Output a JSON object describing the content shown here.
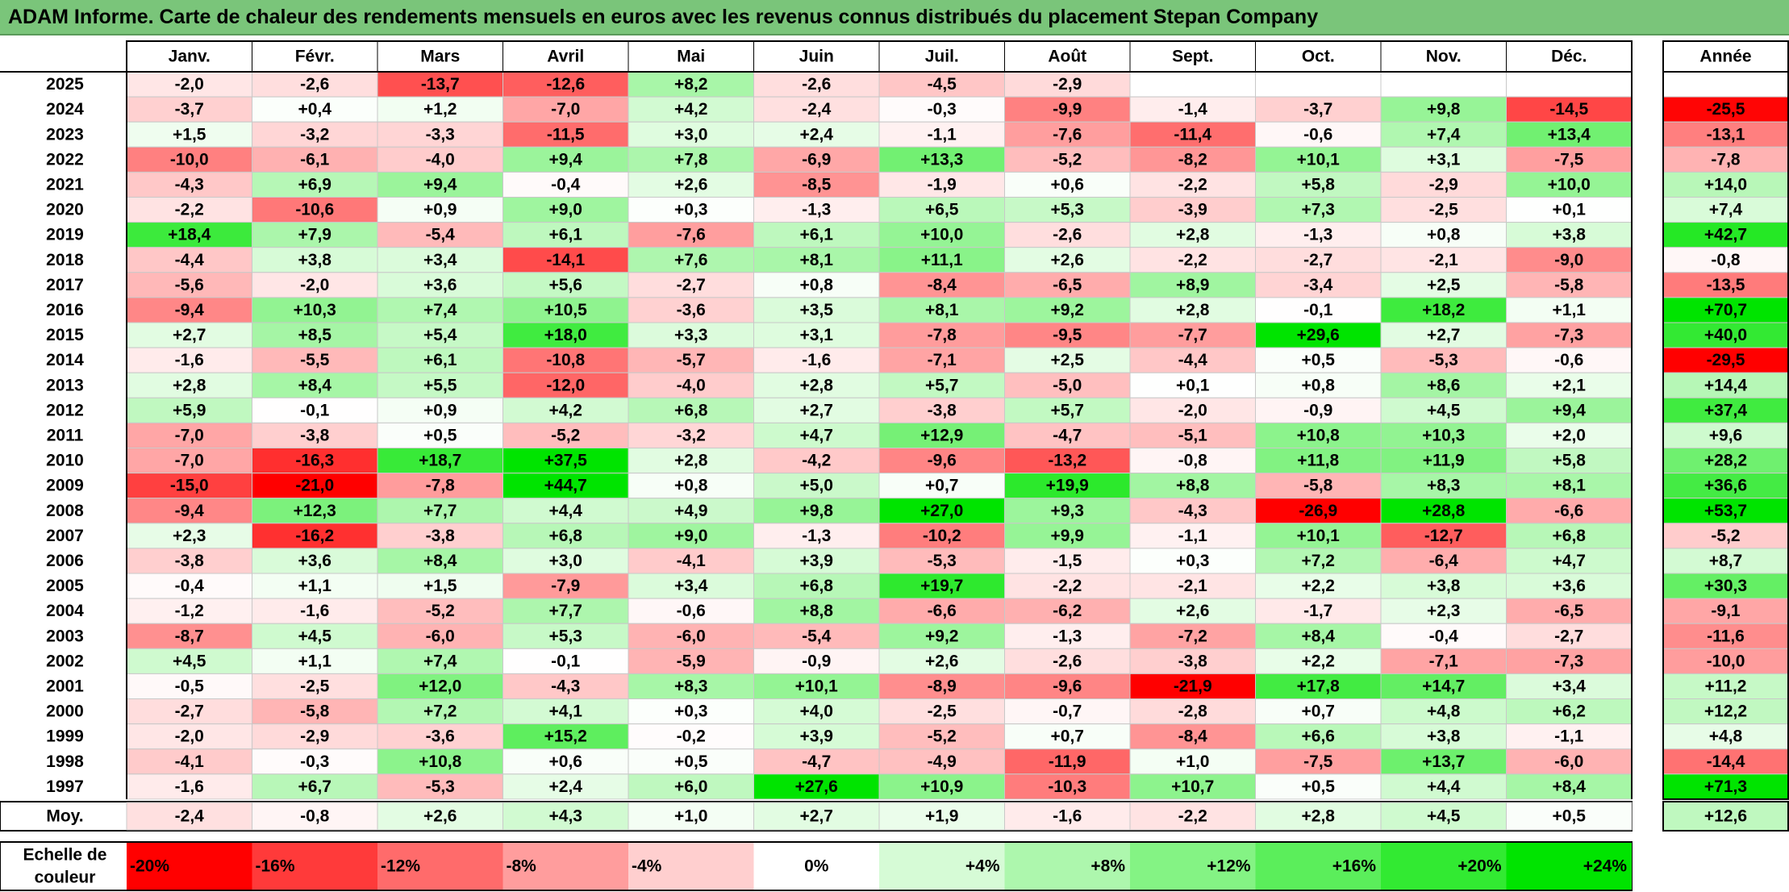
{
  "title": "ADAM Informe. Carte de chaleur des rendements mensuels en euros avec les revenus connus distribués du placement Stepan Company",
  "chart_data": {
    "type": "heatmap",
    "months": [
      "Janv.",
      "Févr.",
      "Mars",
      "Avril",
      "Mai",
      "Juin",
      "Juil.",
      "Août",
      "Sept.",
      "Oct.",
      "Nov.",
      "Déc."
    ],
    "year_col_label": "Année",
    "avg_row_label": "Moy.",
    "rows": [
      {
        "year": "2025",
        "values": [
          -2.0,
          -2.6,
          -13.7,
          -12.6,
          8.2,
          -2.6,
          -4.5,
          -2.9,
          null,
          null,
          null,
          null
        ],
        "annual": null
      },
      {
        "year": "2024",
        "values": [
          -3.7,
          0.4,
          1.2,
          -7.0,
          4.2,
          -2.4,
          -0.3,
          -9.9,
          -1.4,
          -3.7,
          9.8,
          -14.5
        ],
        "annual": -25.5
      },
      {
        "year": "2023",
        "values": [
          1.5,
          -3.2,
          -3.3,
          -11.5,
          3.0,
          2.4,
          -1.1,
          -7.6,
          -11.4,
          -0.6,
          7.4,
          13.4
        ],
        "annual": -13.1
      },
      {
        "year": "2022",
        "values": [
          -10.0,
          -6.1,
          -4.0,
          9.4,
          7.8,
          -6.9,
          13.3,
          -5.2,
          -8.2,
          10.1,
          3.1,
          -7.5
        ],
        "annual": -7.8
      },
      {
        "year": "2021",
        "values": [
          -4.3,
          6.9,
          9.4,
          -0.4,
          2.6,
          -8.5,
          -1.9,
          0.6,
          -2.2,
          5.8,
          -2.9,
          10.0
        ],
        "annual": 14.0
      },
      {
        "year": "2020",
        "values": [
          -2.2,
          -10.6,
          0.9,
          9.0,
          0.3,
          -1.3,
          6.5,
          5.3,
          -3.9,
          7.3,
          -2.5,
          0.1
        ],
        "annual": 7.4
      },
      {
        "year": "2019",
        "values": [
          18.4,
          7.9,
          -5.4,
          6.1,
          -7.6,
          6.1,
          10.0,
          -2.6,
          2.8,
          -1.3,
          0.8,
          3.8
        ],
        "annual": 42.7
      },
      {
        "year": "2018",
        "values": [
          -4.4,
          3.8,
          3.4,
          -14.1,
          7.6,
          8.1,
          11.1,
          2.6,
          -2.2,
          -2.7,
          -2.1,
          -9.0
        ],
        "annual": -0.8
      },
      {
        "year": "2017",
        "values": [
          -5.6,
          -2.0,
          3.6,
          5.6,
          -2.7,
          0.8,
          -8.4,
          -6.5,
          8.9,
          -3.4,
          2.5,
          -5.8
        ],
        "annual": -13.5
      },
      {
        "year": "2016",
        "values": [
          -9.4,
          10.3,
          7.4,
          10.5,
          -3.6,
          3.5,
          8.1,
          9.2,
          2.8,
          -0.1,
          18.2,
          1.1
        ],
        "annual": 70.7
      },
      {
        "year": "2015",
        "values": [
          2.7,
          8.5,
          5.4,
          18.0,
          3.3,
          3.1,
          -7.8,
          -9.5,
          -7.7,
          29.6,
          2.7,
          -7.3
        ],
        "annual": 40.0
      },
      {
        "year": "2014",
        "values": [
          -1.6,
          -5.5,
          6.1,
          -10.8,
          -5.7,
          -1.6,
          -7.1,
          2.5,
          -4.4,
          0.5,
          -5.3,
          -0.6
        ],
        "annual": -29.5
      },
      {
        "year": "2013",
        "values": [
          2.8,
          8.4,
          5.5,
          -12.0,
          -4.0,
          2.8,
          5.7,
          -5.0,
          0.1,
          0.8,
          8.6,
          2.1
        ],
        "annual": 14.4
      },
      {
        "year": "2012",
        "values": [
          5.9,
          -0.1,
          0.9,
          4.2,
          6.8,
          2.7,
          -3.8,
          5.7,
          -2.0,
          -0.9,
          4.5,
          9.4
        ],
        "annual": 37.4
      },
      {
        "year": "2011",
        "values": [
          -7.0,
          -3.8,
          0.5,
          -5.2,
          -3.2,
          4.7,
          12.9,
          -4.7,
          -5.1,
          10.8,
          10.3,
          2.0
        ],
        "annual": 9.6
      },
      {
        "year": "2010",
        "values": [
          -7.0,
          -16.3,
          18.7,
          37.5,
          2.8,
          -4.2,
          -9.6,
          -13.2,
          -0.8,
          11.8,
          11.9,
          5.8
        ],
        "annual": 28.2
      },
      {
        "year": "2009",
        "values": [
          -15.0,
          -21.0,
          -7.8,
          44.7,
          0.8,
          5.0,
          0.7,
          19.9,
          8.8,
          -5.8,
          8.3,
          8.1
        ],
        "annual": 36.6
      },
      {
        "year": "2008",
        "values": [
          -9.4,
          12.3,
          7.7,
          4.4,
          4.9,
          9.8,
          27.0,
          9.3,
          -4.3,
          -26.9,
          28.8,
          -6.6
        ],
        "annual": 53.7
      },
      {
        "year": "2007",
        "values": [
          2.3,
          -16.2,
          -3.8,
          6.8,
          9.0,
          -1.3,
          -10.2,
          9.9,
          -1.1,
          10.1,
          -12.7,
          6.8
        ],
        "annual": -5.2
      },
      {
        "year": "2006",
        "values": [
          -3.8,
          3.6,
          8.4,
          3.0,
          -4.1,
          3.9,
          -5.3,
          -1.5,
          0.3,
          7.2,
          -6.4,
          4.7
        ],
        "annual": 8.7
      },
      {
        "year": "2005",
        "values": [
          -0.4,
          1.1,
          1.5,
          -7.9,
          3.4,
          6.8,
          19.7,
          -2.2,
          -2.1,
          2.2,
          3.8,
          3.6
        ],
        "annual": 30.3
      },
      {
        "year": "2004",
        "values": [
          -1.2,
          -1.6,
          -5.2,
          7.7,
          -0.6,
          8.8,
          -6.6,
          -6.2,
          2.6,
          -1.7,
          2.3,
          -6.5
        ],
        "annual": -9.1
      },
      {
        "year": "2003",
        "values": [
          -8.7,
          4.5,
          -6.0,
          5.3,
          -6.0,
          -5.4,
          9.2,
          -1.3,
          -7.2,
          8.4,
          -0.4,
          -2.7
        ],
        "annual": -11.6
      },
      {
        "year": "2002",
        "values": [
          4.5,
          1.1,
          7.4,
          -0.1,
          -5.9,
          -0.9,
          2.6,
          -2.6,
          -3.8,
          2.2,
          -7.1,
          -7.3
        ],
        "annual": -10.0
      },
      {
        "year": "2001",
        "values": [
          -0.5,
          -2.5,
          12.0,
          -4.3,
          8.3,
          10.1,
          -8.9,
          -9.6,
          -21.9,
          17.8,
          14.7,
          3.4
        ],
        "annual": 11.2
      },
      {
        "year": "2000",
        "values": [
          -2.7,
          -5.8,
          7.2,
          4.1,
          0.3,
          4.0,
          -2.5,
          -0.7,
          -2.8,
          0.7,
          4.8,
          6.2
        ],
        "annual": 12.2
      },
      {
        "year": "1999",
        "values": [
          -2.0,
          -2.9,
          -3.6,
          15.2,
          -0.2,
          3.9,
          -5.2,
          0.7,
          -8.4,
          6.6,
          3.8,
          -1.1
        ],
        "annual": 4.8
      },
      {
        "year": "1998",
        "values": [
          -4.1,
          -0.3,
          10.8,
          0.6,
          0.5,
          -4.7,
          -4.9,
          -11.9,
          1.0,
          -7.5,
          13.7,
          -6.0
        ],
        "annual": -14.4
      },
      {
        "year": "1997",
        "values": [
          -1.6,
          6.7,
          -5.3,
          2.4,
          6.0,
          27.6,
          10.9,
          -10.3,
          10.7,
          0.5,
          4.4,
          8.4
        ],
        "annual": 71.3
      }
    ],
    "averages": {
      "values": [
        -2.4,
        -0.8,
        2.6,
        4.3,
        1.0,
        2.7,
        1.9,
        -1.6,
        -2.2,
        2.8,
        4.5,
        0.5
      ],
      "annual": 12.6
    },
    "scale_label_line1": "Echelle de",
    "scale_label_line2": "couleur",
    "scale": [
      {
        "label": "-20%",
        "value": -20,
        "color": "#ff0000",
        "align": "left"
      },
      {
        "label": "-16%",
        "value": -16,
        "color": "#ff3a3a",
        "align": "left"
      },
      {
        "label": "-12%",
        "value": -12,
        "color": "#ff6b6b",
        "align": "left"
      },
      {
        "label": "-8%",
        "value": -8,
        "color": "#ff9d9d",
        "align": "left"
      },
      {
        "label": "-4%",
        "value": -4,
        "color": "#ffcfcf",
        "align": "left"
      },
      {
        "label": "0%",
        "value": 0,
        "color": "#ffffff",
        "align": "center"
      },
      {
        "label": "+4%",
        "value": 4,
        "color": "#d6fbd6",
        "align": "right"
      },
      {
        "label": "+8%",
        "value": 8,
        "color": "#adf7ad",
        "align": "right"
      },
      {
        "label": "+12%",
        "value": 12,
        "color": "#84f384",
        "align": "right"
      },
      {
        "label": "+16%",
        "value": 16,
        "color": "#5bee5b",
        "align": "right"
      },
      {
        "label": "+20%",
        "value": 20,
        "color": "#32ea32",
        "align": "right"
      },
      {
        "label": "+24%",
        "value": 24,
        "color": "#00e400",
        "align": "right"
      }
    ],
    "color_neg_max": "#ff0000",
    "color_pos_max": "#00e400",
    "color_neutral": "#ffffff"
  }
}
